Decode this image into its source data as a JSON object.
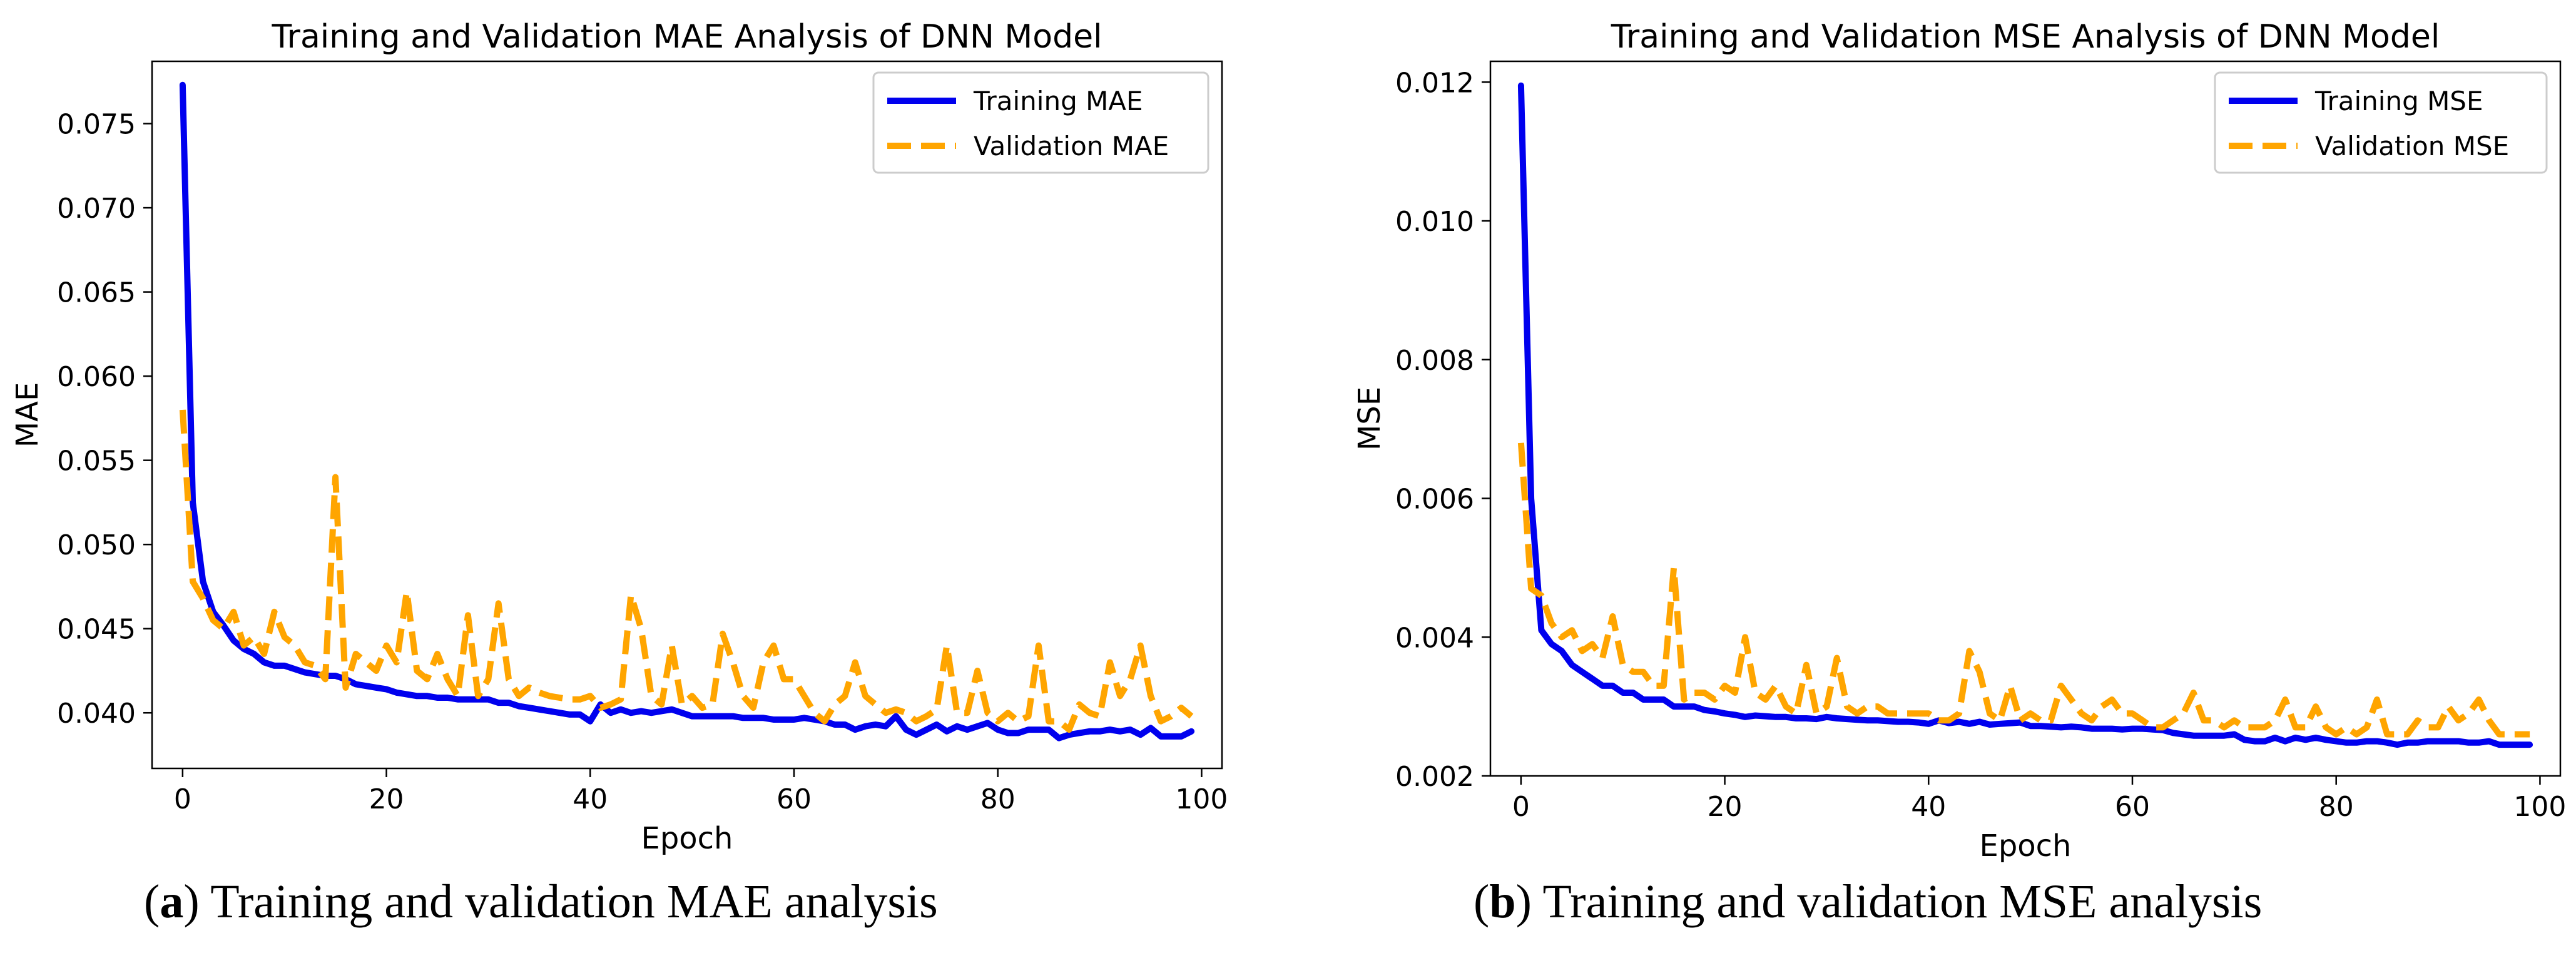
{
  "figure": {
    "captions": [
      {
        "letter": "a",
        "text": "Training and validation MAE analysis"
      },
      {
        "letter": "b",
        "text": "Training and validation MSE analysis"
      }
    ]
  },
  "colors": {
    "training": "#0000ee",
    "validation": "#ffa500"
  },
  "chart_data": [
    {
      "type": "line",
      "title": "Training and Validation MAE Analysis of DNN Model",
      "xlabel": "Epoch",
      "ylabel": "MAE",
      "xlim": [
        -3,
        102
      ],
      "ylim": [
        0.0367,
        0.0787
      ],
      "xticks": [
        0,
        20,
        40,
        60,
        80,
        100
      ],
      "xtick_labels": [
        "0",
        "20",
        "40",
        "60",
        "80",
        "100"
      ],
      "yticks": [
        0.04,
        0.045,
        0.05,
        0.055,
        0.06,
        0.065,
        0.07,
        0.075
      ],
      "ytick_labels": [
        "0.040",
        "0.045",
        "0.050",
        "0.055",
        "0.060",
        "0.065",
        "0.070",
        "0.075"
      ],
      "legend": "top-right",
      "grid": false,
      "x": [
        0,
        1,
        2,
        3,
        4,
        5,
        6,
        7,
        8,
        9,
        10,
        11,
        12,
        13,
        14,
        15,
        16,
        17,
        18,
        19,
        20,
        21,
        22,
        23,
        24,
        25,
        26,
        27,
        28,
        29,
        30,
        31,
        32,
        33,
        34,
        35,
        36,
        37,
        38,
        39,
        40,
        41,
        42,
        43,
        44,
        45,
        46,
        47,
        48,
        49,
        50,
        51,
        52,
        53,
        54,
        55,
        56,
        57,
        58,
        59,
        60,
        61,
        62,
        63,
        64,
        65,
        66,
        67,
        68,
        69,
        70,
        71,
        72,
        73,
        74,
        75,
        76,
        77,
        78,
        79,
        80,
        81,
        82,
        83,
        84,
        85,
        86,
        87,
        88,
        89,
        90,
        91,
        92,
        93,
        94,
        95,
        96,
        97,
        98,
        99
      ],
      "series": [
        {
          "name": "Training MAE",
          "style": "solid",
          "values": [
            0.0773,
            0.0525,
            0.0478,
            0.046,
            0.0452,
            0.0443,
            0.0438,
            0.0435,
            0.043,
            0.0428,
            0.0428,
            0.0426,
            0.0424,
            0.0423,
            0.0422,
            0.0422,
            0.042,
            0.0417,
            0.0416,
            0.0415,
            0.0414,
            0.0412,
            0.0411,
            0.041,
            0.041,
            0.0409,
            0.0409,
            0.0408,
            0.0408,
            0.0408,
            0.0408,
            0.0406,
            0.0406,
            0.0404,
            0.0403,
            0.0402,
            0.0401,
            0.04,
            0.0399,
            0.0399,
            0.0395,
            0.0405,
            0.04,
            0.0402,
            0.04,
            0.0401,
            0.04,
            0.0401,
            0.0402,
            0.04,
            0.0398,
            0.0398,
            0.0398,
            0.0398,
            0.0398,
            0.0397,
            0.0397,
            0.0397,
            0.0396,
            0.0396,
            0.0396,
            0.0397,
            0.0396,
            0.0395,
            0.0393,
            0.0393,
            0.039,
            0.0392,
            0.0393,
            0.0392,
            0.0398,
            0.039,
            0.0387,
            0.039,
            0.0393,
            0.0389,
            0.0392,
            0.039,
            0.0392,
            0.0394,
            0.039,
            0.0388,
            0.0388,
            0.039,
            0.039,
            0.039,
            0.0385,
            0.0387,
            0.0388,
            0.0389,
            0.0389,
            0.039,
            0.0389,
            0.039,
            0.0387,
            0.0391,
            0.0386,
            0.0386,
            0.0386,
            0.0389
          ]
        },
        {
          "name": "Validation MAE",
          "style": "dashed",
          "values": [
            0.058,
            0.0478,
            0.0468,
            0.0455,
            0.045,
            0.046,
            0.044,
            0.0445,
            0.0435,
            0.046,
            0.0445,
            0.044,
            0.043,
            0.0428,
            0.042,
            0.054,
            0.0415,
            0.0435,
            0.043,
            0.0425,
            0.044,
            0.043,
            0.0472,
            0.0425,
            0.042,
            0.0435,
            0.042,
            0.041,
            0.0458,
            0.041,
            0.042,
            0.0465,
            0.042,
            0.041,
            0.0415,
            0.0412,
            0.041,
            0.0409,
            0.0408,
            0.0408,
            0.041,
            0.0403,
            0.0405,
            0.0408,
            0.047,
            0.045,
            0.041,
            0.0405,
            0.044,
            0.0405,
            0.041,
            0.0403,
            0.0405,
            0.0447,
            0.043,
            0.041,
            0.0403,
            0.043,
            0.044,
            0.042,
            0.042,
            0.041,
            0.04,
            0.0395,
            0.0405,
            0.041,
            0.043,
            0.041,
            0.0405,
            0.04,
            0.0402,
            0.04,
            0.0395,
            0.0398,
            0.0402,
            0.044,
            0.04,
            0.04,
            0.0425,
            0.04,
            0.0395,
            0.04,
            0.0395,
            0.0398,
            0.044,
            0.0395,
            0.0395,
            0.039,
            0.0405,
            0.04,
            0.0398,
            0.043,
            0.041,
            0.042,
            0.044,
            0.041,
            0.0395,
            0.0398,
            0.0403,
            0.0398
          ]
        }
      ]
    },
    {
      "type": "line",
      "title": "Training and Validation MSE Analysis of DNN Model",
      "xlabel": "Epoch",
      "ylabel": "MSE",
      "xlim": [
        -3,
        102
      ],
      "ylim": [
        0.002,
        0.0123
      ],
      "xticks": [
        0,
        20,
        40,
        60,
        80,
        100
      ],
      "xtick_labels": [
        "0",
        "20",
        "40",
        "60",
        "80",
        "100"
      ],
      "yticks": [
        0.002,
        0.004,
        0.006,
        0.008,
        0.01,
        0.012
      ],
      "ytick_labels": [
        "0.002",
        "0.004",
        "0.006",
        "0.008",
        "0.010",
        "0.012"
      ],
      "legend": "top-right",
      "grid": false,
      "x": [
        0,
        1,
        2,
        3,
        4,
        5,
        6,
        7,
        8,
        9,
        10,
        11,
        12,
        13,
        14,
        15,
        16,
        17,
        18,
        19,
        20,
        21,
        22,
        23,
        24,
        25,
        26,
        27,
        28,
        29,
        30,
        31,
        32,
        33,
        34,
        35,
        36,
        37,
        38,
        39,
        40,
        41,
        42,
        43,
        44,
        45,
        46,
        47,
        48,
        49,
        50,
        51,
        52,
        53,
        54,
        55,
        56,
        57,
        58,
        59,
        60,
        61,
        62,
        63,
        64,
        65,
        66,
        67,
        68,
        69,
        70,
        71,
        72,
        73,
        74,
        75,
        76,
        77,
        78,
        79,
        80,
        81,
        82,
        83,
        84,
        85,
        86,
        87,
        88,
        89,
        90,
        91,
        92,
        93,
        94,
        95,
        96,
        97,
        98,
        99
      ],
      "series": [
        {
          "name": "Training MSE",
          "style": "solid",
          "values": [
            0.01195,
            0.006,
            0.0041,
            0.0039,
            0.0038,
            0.0036,
            0.0035,
            0.0034,
            0.0033,
            0.0033,
            0.0032,
            0.0032,
            0.0031,
            0.0031,
            0.0031,
            0.003,
            0.003,
            0.003,
            0.00295,
            0.00293,
            0.0029,
            0.00288,
            0.00285,
            0.00287,
            0.00286,
            0.00285,
            0.00285,
            0.00283,
            0.00283,
            0.00282,
            0.00285,
            0.00283,
            0.00282,
            0.00281,
            0.0028,
            0.0028,
            0.00279,
            0.00278,
            0.00278,
            0.00277,
            0.00275,
            0.0028,
            0.00276,
            0.00278,
            0.00275,
            0.00278,
            0.00274,
            0.00275,
            0.00276,
            0.00277,
            0.00272,
            0.00272,
            0.00271,
            0.0027,
            0.00271,
            0.0027,
            0.00268,
            0.00268,
            0.00268,
            0.00267,
            0.00268,
            0.00268,
            0.00267,
            0.00266,
            0.00262,
            0.0026,
            0.00258,
            0.00258,
            0.00258,
            0.00258,
            0.0026,
            0.00252,
            0.0025,
            0.0025,
            0.00255,
            0.0025,
            0.00255,
            0.00252,
            0.00255,
            0.00252,
            0.0025,
            0.00248,
            0.00248,
            0.0025,
            0.0025,
            0.00248,
            0.00245,
            0.00248,
            0.00248,
            0.0025,
            0.0025,
            0.0025,
            0.0025,
            0.00248,
            0.00248,
            0.0025,
            0.00245,
            0.00245,
            0.00245,
            0.00245
          ]
        },
        {
          "name": "Validation MSE",
          "style": "dashed",
          "values": [
            0.0068,
            0.0047,
            0.0046,
            0.0042,
            0.004,
            0.0041,
            0.0038,
            0.0039,
            0.0037,
            0.0043,
            0.0036,
            0.0035,
            0.0035,
            0.0033,
            0.0033,
            0.005,
            0.0031,
            0.0032,
            0.0032,
            0.0031,
            0.0033,
            0.0032,
            0.004,
            0.0032,
            0.0031,
            0.0033,
            0.003,
            0.0029,
            0.0036,
            0.0029,
            0.003,
            0.0037,
            0.003,
            0.0029,
            0.003,
            0.003,
            0.0029,
            0.0029,
            0.0029,
            0.0029,
            0.0029,
            0.0028,
            0.0028,
            0.0029,
            0.0038,
            0.0035,
            0.0029,
            0.0028,
            0.0033,
            0.0028,
            0.0029,
            0.0028,
            0.0028,
            0.0033,
            0.0031,
            0.0029,
            0.0028,
            0.003,
            0.0031,
            0.0029,
            0.0029,
            0.0028,
            0.0027,
            0.0027,
            0.0028,
            0.0029,
            0.0032,
            0.0028,
            0.0028,
            0.0027,
            0.0028,
            0.0027,
            0.0027,
            0.0027,
            0.0028,
            0.0031,
            0.0027,
            0.0027,
            0.003,
            0.0027,
            0.0026,
            0.0027,
            0.0026,
            0.0027,
            0.0031,
            0.0026,
            0.0026,
            0.0026,
            0.0028,
            0.0027,
            0.0027,
            0.003,
            0.0028,
            0.0029,
            0.0031,
            0.0028,
            0.0026,
            0.0026,
            0.0026,
            0.0026
          ]
        }
      ]
    }
  ]
}
